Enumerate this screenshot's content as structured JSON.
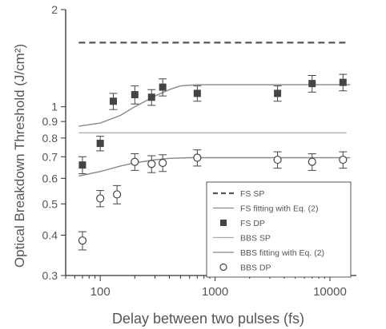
{
  "chart_data": {
    "type": "scatter",
    "xlabel": "Delay between two pulses (fs)",
    "ylabel": "Optical Breakdown Threshold (J/cm²)",
    "xscale": "log",
    "yscale": "log",
    "xlim": [
      50,
      17000
    ],
    "ylim": [
      0.3,
      2.0
    ],
    "x_ticks": [
      {
        "value": 100,
        "label": "100"
      },
      {
        "value": 1000,
        "label": "1000"
      },
      {
        "value": 10000,
        "label": "10000"
      }
    ],
    "y_ticks": [
      {
        "value": 0.3,
        "label": "0.3"
      },
      {
        "value": 0.4,
        "label": "0.4"
      },
      {
        "value": 0.5,
        "label": "0.5"
      },
      {
        "value": 0.6,
        "label": "0.6"
      },
      {
        "value": 0.7,
        "label": "0.7"
      },
      {
        "value": 0.8,
        "label": "0.8"
      },
      {
        "value": 0.9,
        "label": "0.9"
      },
      {
        "value": 1.0,
        "label": "1"
      },
      {
        "value": 2.0,
        "label": "2"
      }
    ],
    "legend_position": "bottom-right",
    "grid": false,
    "series": [
      {
        "name": "FS SP",
        "kind": "hline",
        "style": "dashed",
        "color": "#555555",
        "y": 1.58
      },
      {
        "name": "FS fitting with Eq. (2)",
        "kind": "curve",
        "style": "solid",
        "color": "#888888",
        "x": [
          65,
          100,
          150,
          200,
          300,
          400,
          500,
          700,
          1000,
          3000,
          7000,
          15000
        ],
        "y": [
          0.87,
          0.89,
          0.94,
          1.0,
          1.08,
          1.13,
          1.16,
          1.17,
          1.17,
          1.17,
          1.17,
          1.17
        ]
      },
      {
        "name": "FS DP",
        "kind": "points",
        "marker": "filled-square",
        "color": "#444444",
        "x": [
          70,
          100,
          130,
          200,
          280,
          350,
          700,
          3500,
          7000,
          13000
        ],
        "y": [
          0.66,
          0.77,
          1.04,
          1.09,
          1.07,
          1.15,
          1.1,
          1.1,
          1.18,
          1.19
        ],
        "err": [
          0.04,
          0.04,
          0.06,
          0.07,
          0.06,
          0.07,
          0.06,
          0.06,
          0.07,
          0.07
        ]
      },
      {
        "name": "BBS SP",
        "kind": "hline",
        "style": "solid",
        "color": "#aaaaaa",
        "y": 0.83
      },
      {
        "name": "BBS fitting with Eq. (2)",
        "kind": "curve",
        "style": "solid",
        "color": "#888888",
        "x": [
          65,
          100,
          150,
          200,
          300,
          400,
          600,
          1000,
          3000,
          15000
        ],
        "y": [
          0.61,
          0.63,
          0.655,
          0.67,
          0.685,
          0.692,
          0.695,
          0.695,
          0.695,
          0.695
        ]
      },
      {
        "name": "BBS DP",
        "kind": "points",
        "marker": "open-circle",
        "color": "#444444",
        "x": [
          70,
          100,
          140,
          200,
          280,
          350,
          700,
          3500,
          7000,
          13000
        ],
        "y": [
          0.385,
          0.52,
          0.535,
          0.675,
          0.665,
          0.67,
          0.695,
          0.685,
          0.675,
          0.685
        ],
        "err": [
          0.025,
          0.03,
          0.035,
          0.04,
          0.04,
          0.04,
          0.04,
          0.04,
          0.04,
          0.04
        ]
      }
    ]
  }
}
